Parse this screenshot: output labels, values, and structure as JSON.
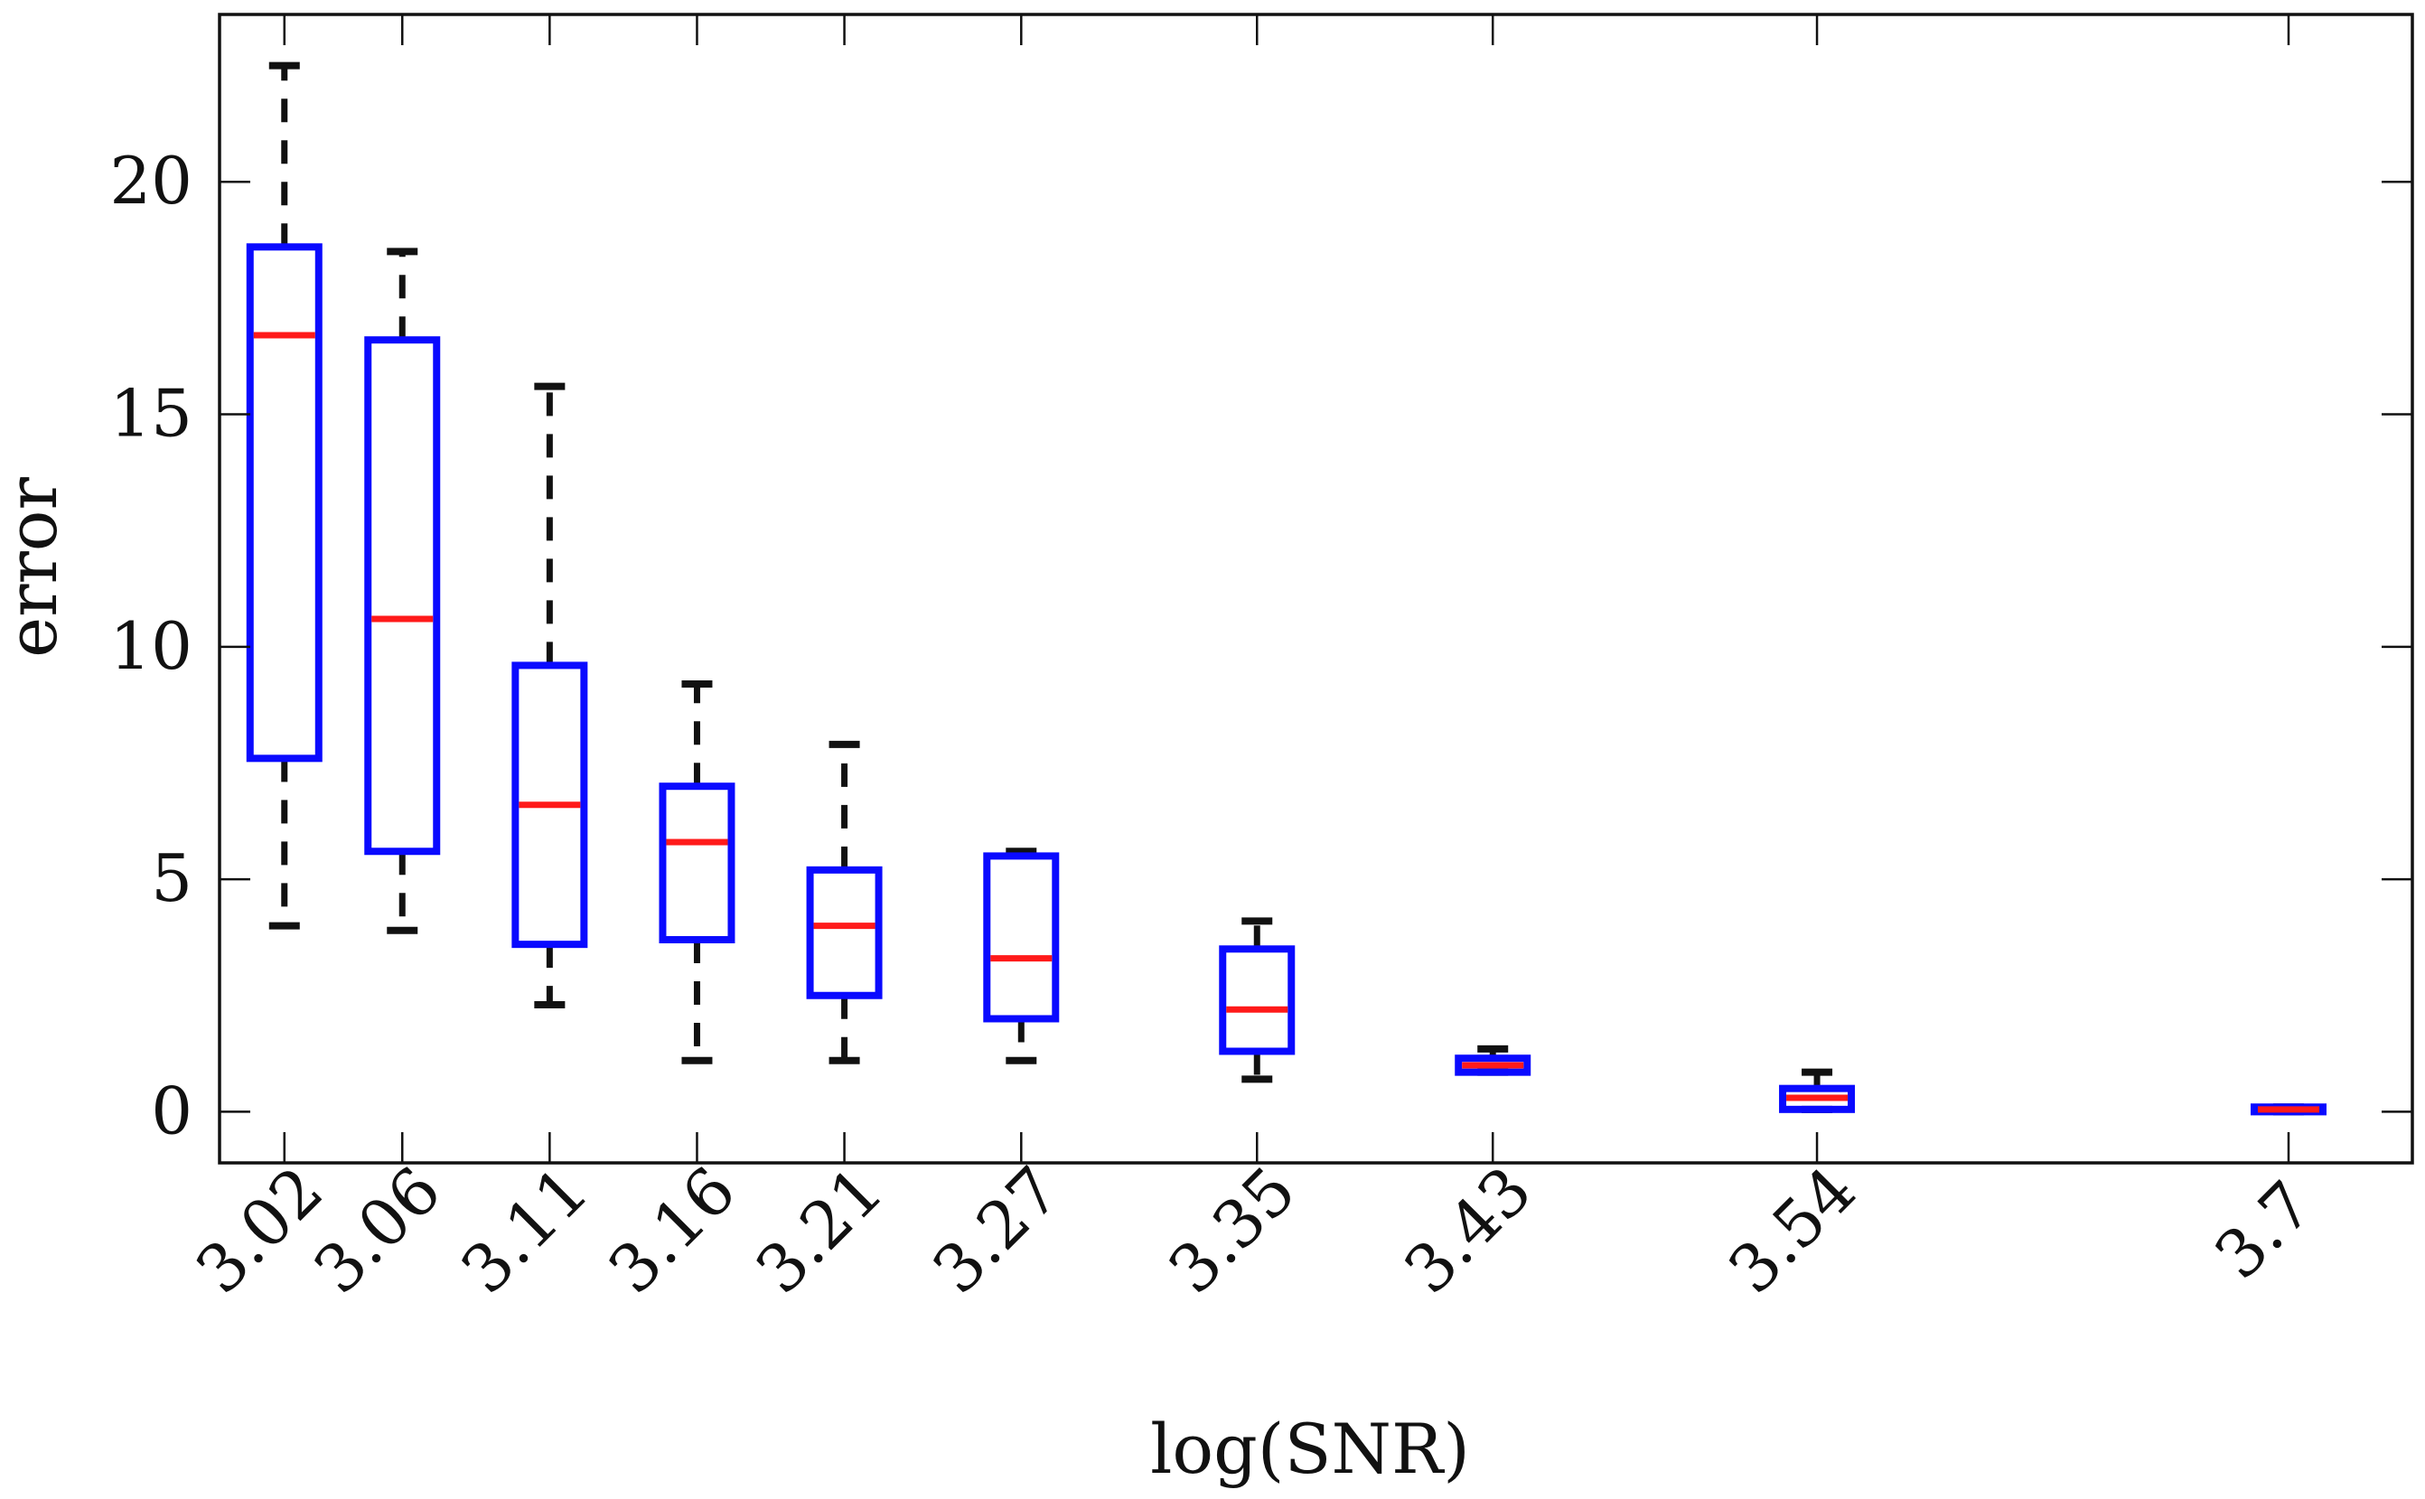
{
  "chart_data": {
    "type": "box",
    "title": "",
    "xlabel": "log(SNR)",
    "ylabel": "error",
    "ylim": [
      -1.1,
      23.6
    ],
    "yticks": [
      0,
      5,
      10,
      15,
      20
    ],
    "xlim": [
      2.998,
      3.742
    ],
    "grid": false,
    "legend": "none",
    "colors": {
      "box": "#0a0aff",
      "median": "#ff1a1a",
      "whisker": "#111111",
      "frame": "#111111"
    },
    "series": [
      {
        "label": "3.02",
        "x": 3.02,
        "whisker_low": 4.0,
        "q1": 7.6,
        "median": 16.7,
        "q3": 18.6,
        "whisker_high": 22.5
      },
      {
        "label": "3.06",
        "x": 3.06,
        "whisker_low": 3.9,
        "q1": 5.6,
        "median": 10.6,
        "q3": 16.6,
        "whisker_high": 18.5
      },
      {
        "label": "3.11",
        "x": 3.11,
        "whisker_low": 2.3,
        "q1": 3.6,
        "median": 6.6,
        "q3": 9.6,
        "whisker_high": 15.6
      },
      {
        "label": "3.16",
        "x": 3.16,
        "whisker_low": 1.1,
        "q1": 3.7,
        "median": 5.8,
        "q3": 7.0,
        "whisker_high": 9.2
      },
      {
        "label": "3.21",
        "x": 3.21,
        "whisker_low": 1.1,
        "q1": 2.5,
        "median": 4.0,
        "q3": 5.2,
        "whisker_high": 7.9
      },
      {
        "label": "3.27",
        "x": 3.27,
        "whisker_low": 1.1,
        "q1": 2.0,
        "median": 3.3,
        "q3": 5.5,
        "whisker_high": 5.6
      },
      {
        "label": "3.35",
        "x": 3.35,
        "whisker_low": 0.7,
        "q1": 1.3,
        "median": 2.2,
        "q3": 3.5,
        "whisker_high": 4.1
      },
      {
        "label": "3.43",
        "x": 3.43,
        "whisker_low": 0.85,
        "q1": 0.85,
        "median": 1.0,
        "q3": 1.15,
        "whisker_high": 1.35
      },
      {
        "label": "3.54",
        "x": 3.54,
        "whisker_low": 0.05,
        "q1": 0.05,
        "median": 0.3,
        "q3": 0.5,
        "whisker_high": 0.85
      },
      {
        "label": "3.7",
        "x": 3.7,
        "whisker_low": 0.0,
        "q1": 0.0,
        "median": 0.05,
        "q3": 0.1,
        "whisker_high": 0.1
      }
    ]
  }
}
